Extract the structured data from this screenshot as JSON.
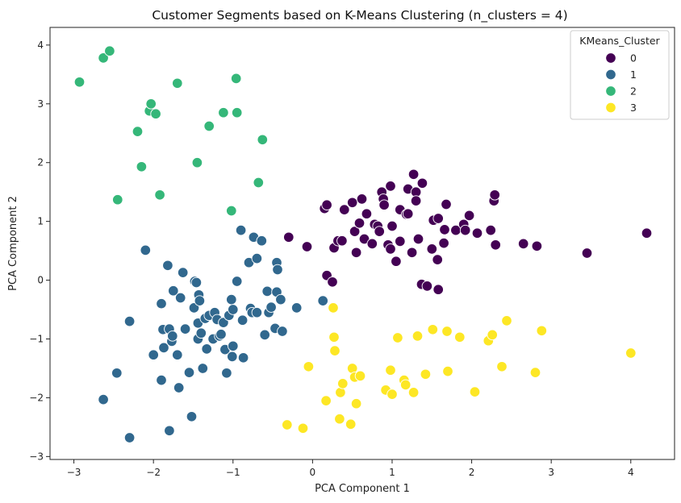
{
  "chart_data": {
    "type": "scatter",
    "title": "Customer Segments based on K-Means Clustering (n_clusters = 4)",
    "xlabel": "PCA Component 1",
    "ylabel": "PCA Component 2",
    "xlim": [
      -3.3,
      4.55
    ],
    "ylim": [
      -3.05,
      4.3
    ],
    "xticks": [
      -3,
      -2,
      -1,
      0,
      1,
      2,
      3,
      4
    ],
    "yticks": [
      -3,
      -2,
      -1,
      0,
      1,
      2,
      3,
      4
    ],
    "grid": false,
    "legend": {
      "title": "KMeans_Cluster",
      "placement": "top-right"
    },
    "series": [
      {
        "name": "0",
        "color": "#440154",
        "points": [
          [
            -0.3,
            0.73
          ],
          [
            -0.07,
            0.57
          ],
          [
            0.15,
            1.22
          ],
          [
            0.18,
            1.28
          ],
          [
            0.27,
            0.55
          ],
          [
            0.32,
            0.67
          ],
          [
            0.37,
            0.67
          ],
          [
            0.4,
            1.2
          ],
          [
            0.5,
            1.32
          ],
          [
            0.53,
            0.83
          ],
          [
            0.55,
            0.47
          ],
          [
            0.59,
            0.97
          ],
          [
            0.62,
            1.38
          ],
          [
            0.65,
            0.7
          ],
          [
            0.68,
            1.13
          ],
          [
            0.75,
            0.62
          ],
          [
            0.78,
            0.95
          ],
          [
            0.82,
            0.92
          ],
          [
            0.84,
            0.83
          ],
          [
            0.87,
            1.5
          ],
          [
            0.89,
            1.38
          ],
          [
            0.9,
            1.28
          ],
          [
            0.95,
            0.6
          ],
          [
            0.98,
            1.6
          ],
          [
            0.98,
            0.53
          ],
          [
            1.0,
            0.92
          ],
          [
            1.05,
            0.32
          ],
          [
            1.1,
            0.66
          ],
          [
            1.1,
            1.2
          ],
          [
            1.18,
            1.12
          ],
          [
            1.2,
            1.13
          ],
          [
            1.2,
            1.55
          ],
          [
            1.25,
            0.47
          ],
          [
            1.27,
            1.8
          ],
          [
            1.3,
            1.5
          ],
          [
            1.3,
            1.35
          ],
          [
            1.33,
            0.7
          ],
          [
            1.38,
            1.65
          ],
          [
            1.5,
            0.53
          ],
          [
            1.52,
            1.02
          ],
          [
            1.58,
            1.05
          ],
          [
            1.57,
            0.35
          ],
          [
            1.65,
            0.63
          ],
          [
            1.66,
            0.86
          ],
          [
            1.68,
            1.29
          ],
          [
            1.8,
            0.85
          ],
          [
            1.9,
            0.95
          ],
          [
            1.92,
            0.85
          ],
          [
            1.97,
            1.1
          ],
          [
            2.07,
            0.8
          ],
          [
            2.24,
            0.85
          ],
          [
            2.28,
            1.35
          ],
          [
            2.3,
            0.6
          ],
          [
            2.29,
            1.45
          ],
          [
            2.65,
            0.62
          ],
          [
            2.82,
            0.58
          ],
          [
            3.45,
            0.46
          ],
          [
            4.2,
            0.8
          ],
          [
            1.37,
            -0.07
          ],
          [
            1.44,
            -0.1
          ],
          [
            1.58,
            -0.16
          ],
          [
            0.18,
            0.08
          ],
          [
            0.25,
            -0.03
          ]
        ]
      },
      {
        "name": "1",
        "color": "#31688e",
        "points": [
          [
            -2.63,
            -2.03
          ],
          [
            -2.46,
            -1.58
          ],
          [
            -2.3,
            -0.7
          ],
          [
            -2.3,
            -2.68
          ],
          [
            -2.1,
            0.51
          ],
          [
            -2.0,
            -1.27
          ],
          [
            -1.9,
            -1.7
          ],
          [
            -1.9,
            -0.4
          ],
          [
            -1.88,
            -0.84
          ],
          [
            -1.87,
            -1.15
          ],
          [
            -1.82,
            0.25
          ],
          [
            -1.8,
            -0.83
          ],
          [
            -1.8,
            -2.56
          ],
          [
            -1.77,
            -1.04
          ],
          [
            -1.76,
            -0.95
          ],
          [
            -1.75,
            -0.18
          ],
          [
            -1.7,
            -1.27
          ],
          [
            -1.68,
            -1.83
          ],
          [
            -1.66,
            -0.3
          ],
          [
            -1.63,
            0.13
          ],
          [
            -1.6,
            -0.83
          ],
          [
            -1.55,
            -1.57
          ],
          [
            -1.52,
            -2.32
          ],
          [
            -1.49,
            -0.47
          ],
          [
            -1.48,
            -0.02
          ],
          [
            -1.46,
            -0.04
          ],
          [
            -1.44,
            -0.73
          ],
          [
            -1.44,
            -1.0
          ],
          [
            -1.43,
            -0.25
          ],
          [
            -1.42,
            -0.35
          ],
          [
            -1.4,
            -0.9
          ],
          [
            -1.38,
            -1.5
          ],
          [
            -1.35,
            -0.65
          ],
          [
            -1.33,
            -1.17
          ],
          [
            -1.3,
            -0.6
          ],
          [
            -1.25,
            -1.0
          ],
          [
            -1.23,
            -0.55
          ],
          [
            -1.2,
            -0.67
          ],
          [
            -1.17,
            -0.95
          ],
          [
            -1.15,
            -0.92
          ],
          [
            -1.12,
            -0.72
          ],
          [
            -1.1,
            -1.18
          ],
          [
            -1.08,
            -1.58
          ],
          [
            -1.05,
            -0.6
          ],
          [
            -1.02,
            -0.33
          ],
          [
            -1.0,
            -0.5
          ],
          [
            -1.0,
            -1.12
          ],
          [
            -1.01,
            -1.3
          ],
          [
            -0.95,
            -0.02
          ],
          [
            -0.9,
            0.85
          ],
          [
            -0.88,
            -0.68
          ],
          [
            -0.87,
            -1.32
          ],
          [
            -0.8,
            0.3
          ],
          [
            -0.78,
            -0.48
          ],
          [
            -0.76,
            -0.55
          ],
          [
            -0.74,
            0.73
          ],
          [
            -0.7,
            -0.55
          ],
          [
            -0.7,
            0.37
          ],
          [
            -0.64,
            0.67
          ],
          [
            -0.6,
            -0.93
          ],
          [
            -0.57,
            -0.19
          ],
          [
            -0.55,
            -0.55
          ],
          [
            -0.52,
            -0.46
          ],
          [
            -0.47,
            -0.82
          ],
          [
            -0.45,
            0.3
          ],
          [
            -0.44,
            0.18
          ],
          [
            -0.45,
            -0.2
          ],
          [
            -0.4,
            -0.33
          ],
          [
            -0.38,
            -0.87
          ],
          [
            -0.2,
            -0.47
          ],
          [
            0.13,
            -0.35
          ]
        ]
      },
      {
        "name": "2",
        "color": "#35b779",
        "points": [
          [
            -2.93,
            3.37
          ],
          [
            -2.63,
            3.78
          ],
          [
            -2.55,
            3.9
          ],
          [
            -2.45,
            1.37
          ],
          [
            -2.2,
            2.53
          ],
          [
            -2.15,
            1.93
          ],
          [
            -2.05,
            2.88
          ],
          [
            -2.03,
            3.0
          ],
          [
            -1.97,
            2.83
          ],
          [
            -1.92,
            1.45
          ],
          [
            -1.7,
            3.35
          ],
          [
            -1.45,
            2.0
          ],
          [
            -1.3,
            2.62
          ],
          [
            -1.12,
            2.85
          ],
          [
            -0.96,
            3.43
          ],
          [
            -0.95,
            2.85
          ],
          [
            -1.02,
            1.18
          ],
          [
            -0.68,
            1.66
          ],
          [
            -0.63,
            2.39
          ]
        ]
      },
      {
        "name": "3",
        "color": "#fde725",
        "points": [
          [
            -0.32,
            -2.46
          ],
          [
            -0.12,
            -2.52
          ],
          [
            -0.05,
            -1.47
          ],
          [
            0.17,
            -2.05
          ],
          [
            0.26,
            -0.47
          ],
          [
            0.27,
            -0.97
          ],
          [
            0.28,
            -1.2
          ],
          [
            0.34,
            -2.36
          ],
          [
            0.35,
            -1.91
          ],
          [
            0.38,
            -1.76
          ],
          [
            0.48,
            -2.45
          ],
          [
            0.5,
            -1.5
          ],
          [
            0.53,
            -1.65
          ],
          [
            0.55,
            -2.1
          ],
          [
            0.6,
            -1.63
          ],
          [
            0.92,
            -1.87
          ],
          [
            0.98,
            -1.53
          ],
          [
            1.0,
            -1.94
          ],
          [
            1.07,
            -0.98
          ],
          [
            1.15,
            -1.7
          ],
          [
            1.17,
            -1.78
          ],
          [
            1.27,
            -1.91
          ],
          [
            1.32,
            -0.95
          ],
          [
            1.42,
            -1.6
          ],
          [
            1.51,
            -0.84
          ],
          [
            1.69,
            -0.87
          ],
          [
            1.7,
            -1.55
          ],
          [
            1.85,
            -0.97
          ],
          [
            2.04,
            -1.9
          ],
          [
            2.21,
            -1.03
          ],
          [
            2.26,
            -0.93
          ],
          [
            2.38,
            -1.47
          ],
          [
            2.44,
            -0.69
          ],
          [
            2.8,
            -1.57
          ],
          [
            2.88,
            -0.86
          ],
          [
            4.0,
            -1.24
          ]
        ]
      }
    ]
  }
}
